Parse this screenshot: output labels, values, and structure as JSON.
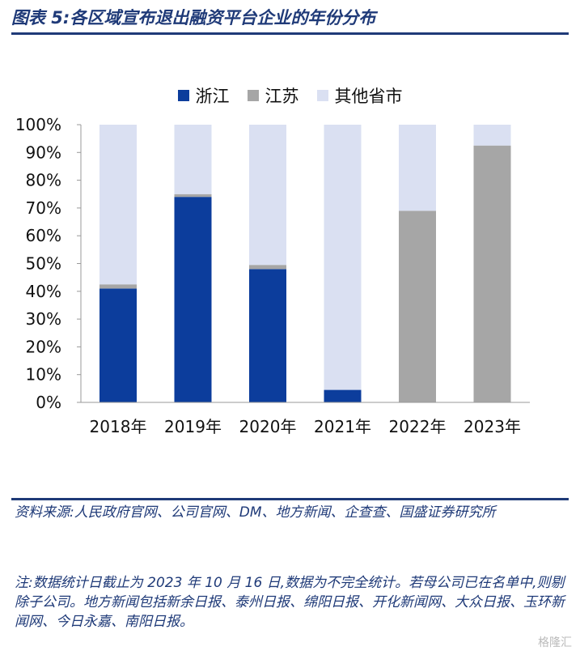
{
  "title": "图表 5:各区域宣布退出融资平台企业的年份分布",
  "source": "资料来源:人民政府官网、公司官网、DM、地方新闻、企查查、国盛证券研究所",
  "footnote": "注:数据统计日截止为 2023 年 10 月 16 日,数据为不完全统计。若母公司已在名单中,则剔除子公司。地方新闻包括新余日报、泰州日报、绵阳日报、开化新闻网、大众日报、玉环新闻网、今日永嘉、南阳日报。",
  "watermark": "格隆汇",
  "chart_data": {
    "type": "bar",
    "stacked": true,
    "categories": [
      "2018年",
      "2019年",
      "2020年",
      "2021年",
      "2022年",
      "2023年"
    ],
    "series": [
      {
        "name": "浙江",
        "color": "#0c3d9c",
        "values": [
          41,
          74,
          48,
          4.5,
          0,
          0
        ]
      },
      {
        "name": "江苏",
        "color": "#a6a6a6",
        "values": [
          1.5,
          1,
          1.5,
          0,
          69,
          92.5
        ]
      },
      {
        "name": "其他省市",
        "color": "#dae0f2",
        "values": [
          57.5,
          25,
          50.5,
          95.5,
          31,
          7.5
        ]
      }
    ],
    "yticks": [
      "0%",
      "10%",
      "20%",
      "30%",
      "40%",
      "50%",
      "60%",
      "70%",
      "80%",
      "90%",
      "100%"
    ],
    "ylim": [
      0,
      100
    ],
    "grid": false,
    "legend": "top-center"
  }
}
